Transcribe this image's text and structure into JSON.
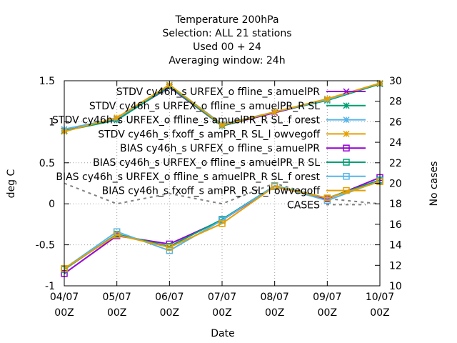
{
  "chart_data": {
    "type": "line",
    "title_lines": [
      "Temperature 200hPa",
      "Selection: ALL      21 stations",
      "Used  00 + 24",
      "Averaging window: 24h"
    ],
    "xlabel": "Date",
    "ylabel": "deg C",
    "y2label": "No cases",
    "x_tick_labels": [
      [
        "04/07",
        "00Z"
      ],
      [
        "05/07",
        "00Z"
      ],
      [
        "06/07",
        "00Z"
      ],
      [
        "07/07",
        "00Z"
      ],
      [
        "08/07",
        "00Z"
      ],
      [
        "09/07",
        "00Z"
      ],
      [
        "10/07",
        "00Z"
      ]
    ],
    "y_ticks": [
      -1,
      -0.5,
      0,
      0.5,
      1,
      1.5
    ],
    "y_tick_labels": [
      "-1",
      "-0.5",
      "0",
      "0.5",
      "1",
      "1.5"
    ],
    "y2_ticks": [
      10,
      12,
      14,
      16,
      18,
      20,
      22,
      24,
      26,
      28,
      30
    ],
    "y2_tick_labels": [
      "10",
      "12",
      "14",
      "16",
      "18",
      "20",
      "22",
      "24",
      "26",
      "28",
      "30"
    ],
    "ylim": [
      -1,
      1.5
    ],
    "y2lim": [
      10,
      30
    ],
    "grid": true,
    "legend_position": "top-right",
    "series": [
      {
        "name": "STDV cy46h_s URFEX_o ffline_s amuelPR",
        "color": "#9400d3",
        "marker": "x",
        "values": [
          0.89,
          1.03,
          1.42,
          0.95,
          1.11,
          1.27,
          1.46
        ]
      },
      {
        "name": "STDV cy46h_s URFEX_o ffline_s amuelPR_R SL",
        "color": "#009e73",
        "marker": "star",
        "values": [
          0.89,
          1.02,
          1.43,
          0.95,
          1.12,
          1.26,
          1.46
        ]
      },
      {
        "name": "STDV cy46h_s URFEX_o ffline_s amuelPR_R SL_f orest",
        "color": "#56b4e9",
        "marker": "star",
        "values": [
          0.91,
          1.04,
          1.45,
          0.97,
          1.12,
          1.27,
          1.47
        ]
      },
      {
        "name": "STDV cy46h_s fxoff_s amPR_R SL_l owvegoff",
        "color": "#e69f00",
        "marker": "star",
        "values": [
          0.88,
          1.05,
          1.45,
          0.96,
          1.12,
          1.28,
          1.47
        ]
      },
      {
        "name": "BIAS cy46h_s URFEX_o ffline_s amuelPR",
        "color": "#9400d3",
        "marker": "square",
        "values": [
          -0.85,
          -0.39,
          -0.49,
          -0.2,
          0.21,
          0.06,
          0.32
        ]
      },
      {
        "name": "BIAS cy46h_s URFEX_o ffline_s amuelPR_R SL",
        "color": "#009e73",
        "marker": "square",
        "values": [
          -0.8,
          -0.37,
          -0.52,
          -0.19,
          0.22,
          0.07,
          0.29
        ]
      },
      {
        "name": "BIAS cy46h_s URFEX_o ffline_s amuelPR_R SL_f orest",
        "color": "#56b4e9",
        "marker": "square",
        "values": [
          -0.79,
          -0.34,
          -0.57,
          -0.2,
          0.22,
          0.04,
          0.28
        ]
      },
      {
        "name": "BIAS cy46h_s fxoff_s amPR_R SL_l owvegoff",
        "color": "#e69f00",
        "marker": "square",
        "values": [
          -0.79,
          -0.38,
          -0.53,
          -0.24,
          0.21,
          0.07,
          0.27
        ]
      }
    ],
    "cases_series": {
      "name": "CASES",
      "color": "#808080",
      "axis": "y2",
      "values": [
        20,
        18,
        19,
        18,
        20,
        18.5,
        18
      ]
    }
  }
}
